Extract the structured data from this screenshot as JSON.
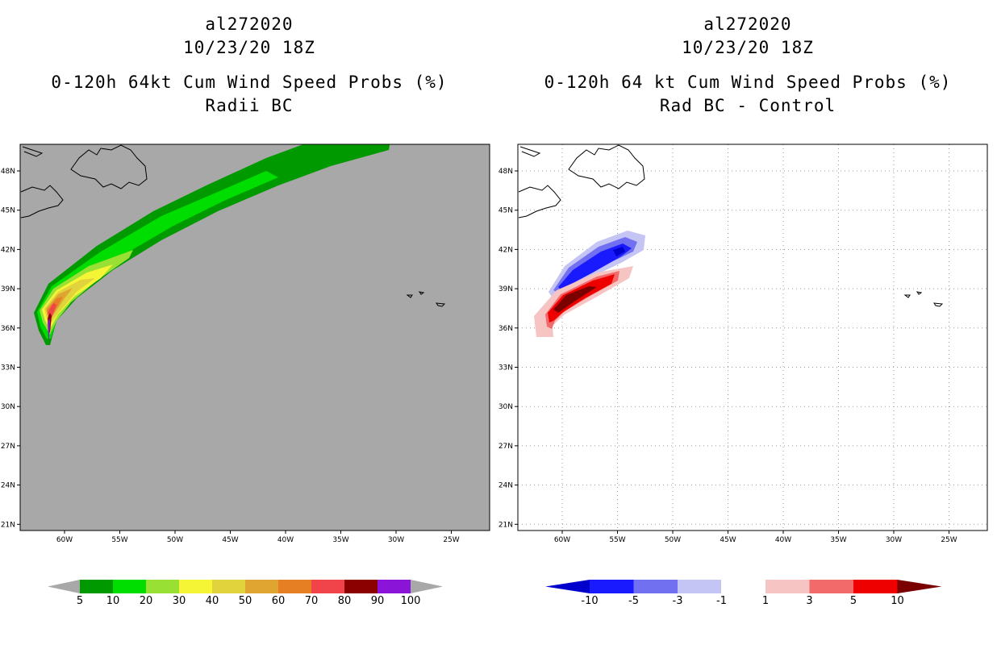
{
  "left_panel": {
    "title_line1": "al272020",
    "title_line2": "10/23/20 18Z",
    "title_line3": "0-120h 64kt Cum Wind Speed Probs (%)",
    "title_line4": "Radii BC",
    "colorbar_labels": [
      "5",
      "10",
      "20",
      "30",
      "40",
      "50",
      "60",
      "70",
      "80",
      "90",
      "100"
    ],
    "colorbar_colors": [
      "#009900",
      "#00dd00",
      "#99e034",
      "#f5f536",
      "#e0d33c",
      "#e0a530",
      "#e67e23",
      "#f0444a",
      "#8b0000",
      "#8a14d8"
    ],
    "background_color": "#a8a8a8"
  },
  "right_panel": {
    "title_line1": "al272020",
    "title_line2": "10/23/20 18Z",
    "title_line3": "0-120h 64 kt Cum Wind Speed Probs (%)",
    "title_line4": "Rad BC - Control",
    "colorbar_labels": [
      "-10",
      "-5",
      "-3",
      "-1",
      "1",
      "3",
      "5",
      "10"
    ],
    "colorbar_colors": [
      "#0000cc",
      "#1a1aff",
      "#7070f0",
      "#c4c4f5",
      "#ffffff",
      "#f7c4c4",
      "#f26a6a",
      "#ee0000",
      "#7a0000"
    ]
  },
  "lat_labels": [
    "48N",
    "45N",
    "42N",
    "39N",
    "36N",
    "33N",
    "30N",
    "27N",
    "24N",
    "21N"
  ],
  "lon_labels": [
    "60W",
    "55W",
    "50W",
    "45W",
    "40W",
    "35W",
    "30W",
    "25W"
  ]
}
